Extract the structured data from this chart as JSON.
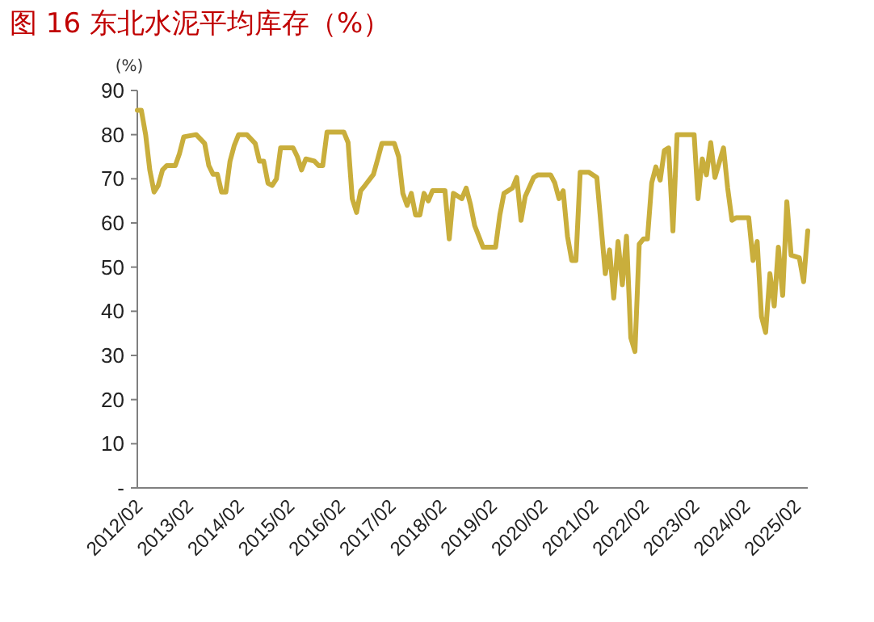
{
  "chart_data": {
    "type": "line",
    "title": "图 16 东北水泥平均库存（%）",
    "ylabel": "(%)",
    "ylim": [
      0,
      90
    ],
    "yticks": [
      {
        "value": 0,
        "label": "-"
      },
      10,
      20,
      30,
      40,
      50,
      60,
      70,
      80,
      90
    ],
    "xlim": [
      "2012-02",
      "2025-05"
    ],
    "xticks": [
      {
        "value": "2012-02",
        "label": "2012/02"
      },
      {
        "value": "2013-02",
        "label": "2013/02"
      },
      {
        "value": "2014-02",
        "label": "2014/02"
      },
      {
        "value": "2015-02",
        "label": "2015/02"
      },
      {
        "value": "2016-02",
        "label": "2016/02"
      },
      {
        "value": "2017-02",
        "label": "2017/02"
      },
      {
        "value": "2018-02",
        "label": "2018/02"
      },
      {
        "value": "2019-02",
        "label": "2019/02"
      },
      {
        "value": "2020-02",
        "label": "2020/02"
      },
      {
        "value": "2021-02",
        "label": "2021/02"
      },
      {
        "value": "2022-02",
        "label": "2022/02"
      },
      {
        "value": "2023-02",
        "label": "2023/02"
      },
      {
        "value": "2024-02",
        "label": "2024/02"
      },
      {
        "value": "2025-02",
        "label": "2025/02"
      }
    ],
    "line_style": "solid",
    "series": [
      {
        "color": "#c9ae3c",
        "x": [
          "2012-02",
          "2012-03",
          "2012-04",
          "2012-05",
          "2012-06",
          "2012-07",
          "2012-08",
          "2012-09",
          "2012-11",
          "2012-12",
          "2013-01",
          "2013-04",
          "2013-06",
          "2013-07",
          "2013-08",
          "2013-09",
          "2013-10",
          "2013-11",
          "2013-12",
          "2014-01",
          "2014-02",
          "2014-04",
          "2014-06",
          "2014-07",
          "2014-08",
          "2014-09",
          "2014-10",
          "2014-11",
          "2014-12",
          "2015-03",
          "2015-04",
          "2015-05",
          "2015-06",
          "2015-08",
          "2015-09",
          "2015-10",
          "2015-11",
          "2016-03",
          "2016-04",
          "2016-05",
          "2016-06",
          "2016-07",
          "2016-08",
          "2016-10",
          "2016-11",
          "2016-12",
          "2017-03",
          "2017-04",
          "2017-05",
          "2017-06",
          "2017-07",
          "2017-08",
          "2017-09",
          "2017-10",
          "2017-11",
          "2017-12",
          "2018-03",
          "2018-04",
          "2018-05",
          "2018-07",
          "2018-08",
          "2018-09",
          "2018-10",
          "2018-12",
          "2019-03",
          "2019-04",
          "2019-05",
          "2019-07",
          "2019-08",
          "2019-09",
          "2019-10",
          "2019-12",
          "2020-01",
          "2020-04",
          "2020-05",
          "2020-06",
          "2020-07",
          "2020-08",
          "2020-09",
          "2020-10",
          "2020-11",
          "2021-01",
          "2021-03",
          "2021-05",
          "2021-06",
          "2021-07",
          "2021-08",
          "2021-09",
          "2021-10",
          "2021-11",
          "2021-12",
          "2022-01",
          "2022-02",
          "2022-03",
          "2022-04",
          "2022-05",
          "2022-06",
          "2022-07",
          "2022-08",
          "2022-09",
          "2022-10",
          "2023-02",
          "2023-03",
          "2023-04",
          "2023-05",
          "2023-06",
          "2023-07",
          "2023-09",
          "2023-10",
          "2023-11",
          "2023-12",
          "2024-03",
          "2024-04",
          "2024-05",
          "2024-06",
          "2024-07",
          "2024-08",
          "2024-09",
          "2024-10",
          "2024-11",
          "2024-12",
          "2025-01",
          "2025-03",
          "2025-04",
          "2025-05"
        ],
        "values": [
          85.5,
          85.5,
          80,
          72,
          67,
          68.5,
          72,
          73,
          73,
          75.7,
          79.5,
          80,
          78,
          73,
          71,
          71,
          67,
          67,
          74,
          77.6,
          80,
          80,
          78,
          74,
          74,
          69,
          68.5,
          70,
          77,
          77,
          75,
          72,
          74.5,
          74,
          73,
          73,
          80.6,
          80.6,
          78.2,
          65.5,
          62.4,
          67.3,
          68.5,
          71,
          74.5,
          78,
          78,
          75,
          66.7,
          64,
          66.7,
          61.8,
          61.8,
          66.7,
          65,
          67.3,
          67.3,
          56.4,
          66.7,
          65.5,
          67.9,
          64.2,
          59.4,
          54.5,
          54.5,
          61.8,
          66.7,
          67.9,
          70.3,
          60.6,
          66,
          70.3,
          70.9,
          70.9,
          69.1,
          65.5,
          67.3,
          57,
          51.5,
          51.5,
          71.5,
          71.5,
          70.3,
          48.5,
          53.9,
          43,
          55.8,
          46,
          57,
          34,
          30.9,
          55.2,
          56.4,
          56.4,
          69.1,
          72.7,
          69.7,
          76.4,
          77,
          58.2,
          80,
          80,
          65.5,
          74.5,
          70.9,
          78.2,
          70.3,
          77,
          67.9,
          60.6,
          61.2,
          61.2,
          51.5,
          55.8,
          38.8,
          35.2,
          48.5,
          41.2,
          54.5,
          43.6,
          64.8,
          52.7,
          52.1,
          46.7,
          58.2
        ]
      }
    ]
  }
}
